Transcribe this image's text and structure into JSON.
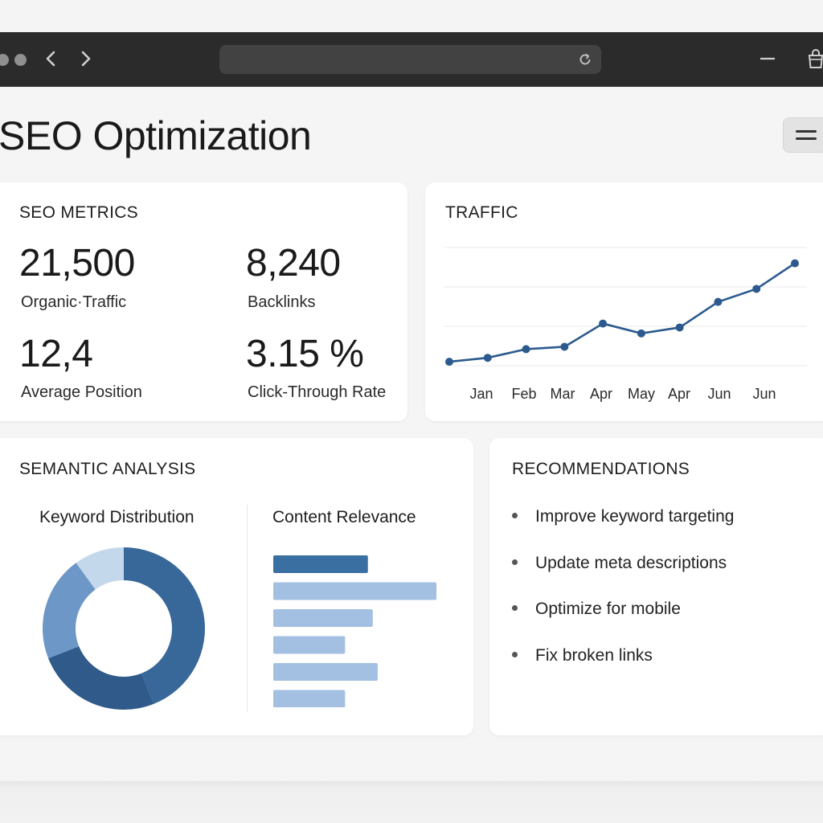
{
  "page": {
    "title": "SEO Optimization"
  },
  "metrics": {
    "title": "SEO METRICS",
    "items": [
      {
        "value": "21,500",
        "label": "Organic·Traffic"
      },
      {
        "value": "8,240",
        "label": "Backlinks"
      },
      {
        "value": "12,4",
        "label": "Average Position"
      },
      {
        "value": "3.15 %",
        "label": "Click-Through Rate"
      }
    ]
  },
  "traffic": {
    "title": "TRAFFIC",
    "chart_data": {
      "type": "line",
      "x_labels": [
        "Jan",
        "Feb",
        "Mar",
        "Apr",
        "May",
        "Apr",
        "Jun",
        "Jun"
      ],
      "values": [
        1,
        2,
        4.2,
        4.8,
        10.7,
        8.2,
        9.7,
        16.2,
        19.5,
        26
      ],
      "ylim": [
        0,
        30
      ],
      "grid": true,
      "color": "#2c5a8e"
    }
  },
  "semantic": {
    "title": "SEMANTIC ANALYSIS",
    "keyword_distribution": {
      "title": "Keyword Distribution",
      "chart_data": {
        "type": "pie",
        "values": [
          44,
          25,
          21,
          10
        ],
        "colors": [
          "#386899",
          "#2f5a8a",
          "#6d97c7",
          "#c4d8ec"
        ]
      }
    },
    "content_relevance": {
      "title": "Content Relevance",
      "chart_data": {
        "type": "bar",
        "values": [
          58,
          100,
          61,
          44,
          64,
          44
        ],
        "colors": [
          "#3a6fa2",
          "#a3c0e2",
          "#a3c0e2",
          "#a3c0e2",
          "#a3c0e2",
          "#a3c0e2"
        ]
      }
    }
  },
  "recommendations": {
    "title": "RECOMMENDATIONS",
    "items": [
      "Improve keyword targeting",
      "Update meta descriptions",
      "Optimize for mobile",
      "Fix broken links"
    ]
  },
  "icons": {
    "back": "chevron-left-icon",
    "forward": "chevron-right-icon",
    "reload": "reload-icon",
    "minimize": "minimize-icon",
    "bag": "shopping-bag-icon",
    "menu": "hamburger-menu-icon"
  }
}
